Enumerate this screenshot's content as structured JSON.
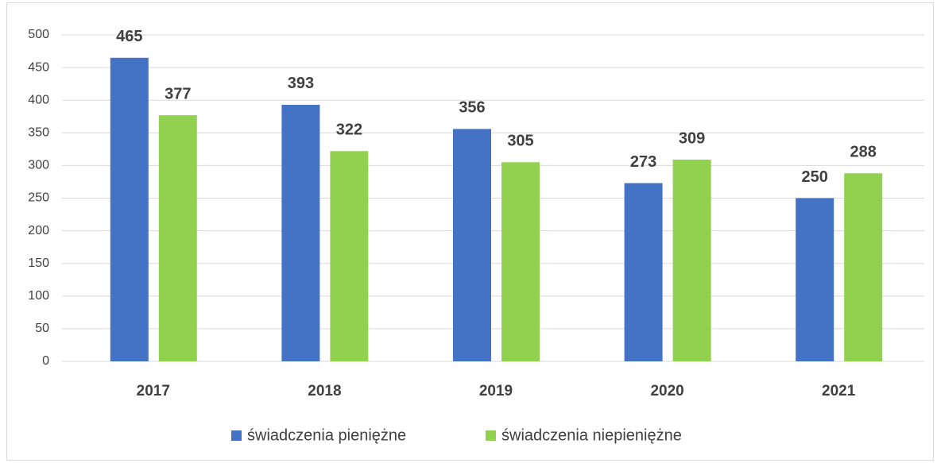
{
  "chart_data": {
    "type": "bar",
    "categories": [
      "2017",
      "2018",
      "2019",
      "2020",
      "2021"
    ],
    "series": [
      {
        "name": "świadczenia pieniężne",
        "color": "#4472c4",
        "values": [
          465,
          393,
          356,
          273,
          250
        ]
      },
      {
        "name": "świadczenia niepieniężne",
        "color": "#92d050",
        "values": [
          377,
          322,
          305,
          309,
          288
        ]
      }
    ],
    "ylim": [
      0,
      500
    ],
    "yticks": [
      0,
      50,
      100,
      150,
      200,
      250,
      300,
      350,
      400,
      450,
      500
    ],
    "grid": true,
    "legend": "bottom"
  }
}
